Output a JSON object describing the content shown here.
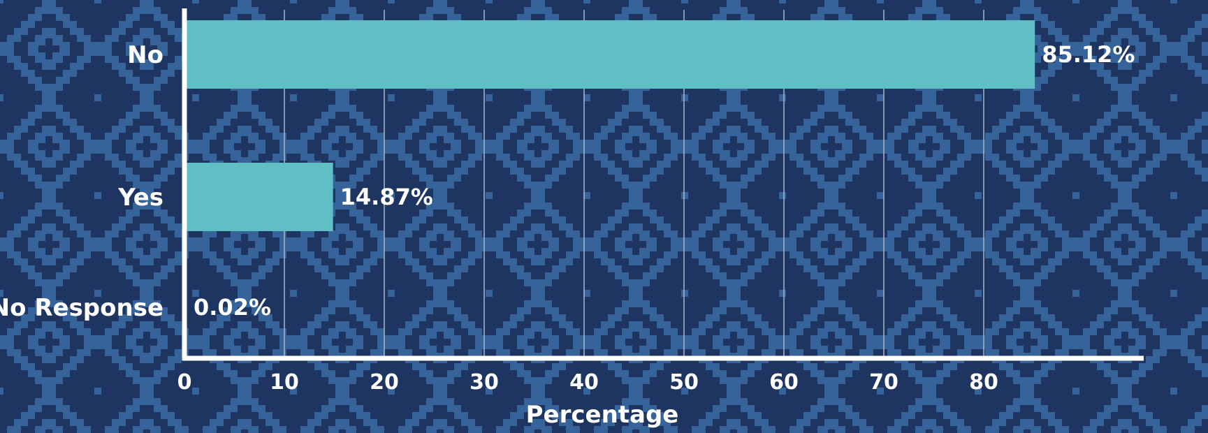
{
  "chart_data": {
    "type": "bar",
    "orientation": "horizontal",
    "categories": [
      "No",
      "Yes",
      "No Response"
    ],
    "values": [
      85.12,
      14.87,
      0.02
    ],
    "value_labels": [
      "85.12%",
      "14.87%",
      "0.02%"
    ],
    "xlabel": "Percentage",
    "ylabel": "",
    "xlim": [
      0,
      89
    ],
    "xticks": [
      0,
      10,
      20,
      30,
      40,
      50,
      60,
      70,
      80
    ],
    "grid": "vertical",
    "legend": "none",
    "colors": {
      "bar": "#5fbfc5",
      "background_dark": "#1e3461",
      "background_pattern": "#35639a",
      "axis": "#ffffff",
      "grid": "#aab8cc",
      "text": "#ffffff"
    }
  }
}
